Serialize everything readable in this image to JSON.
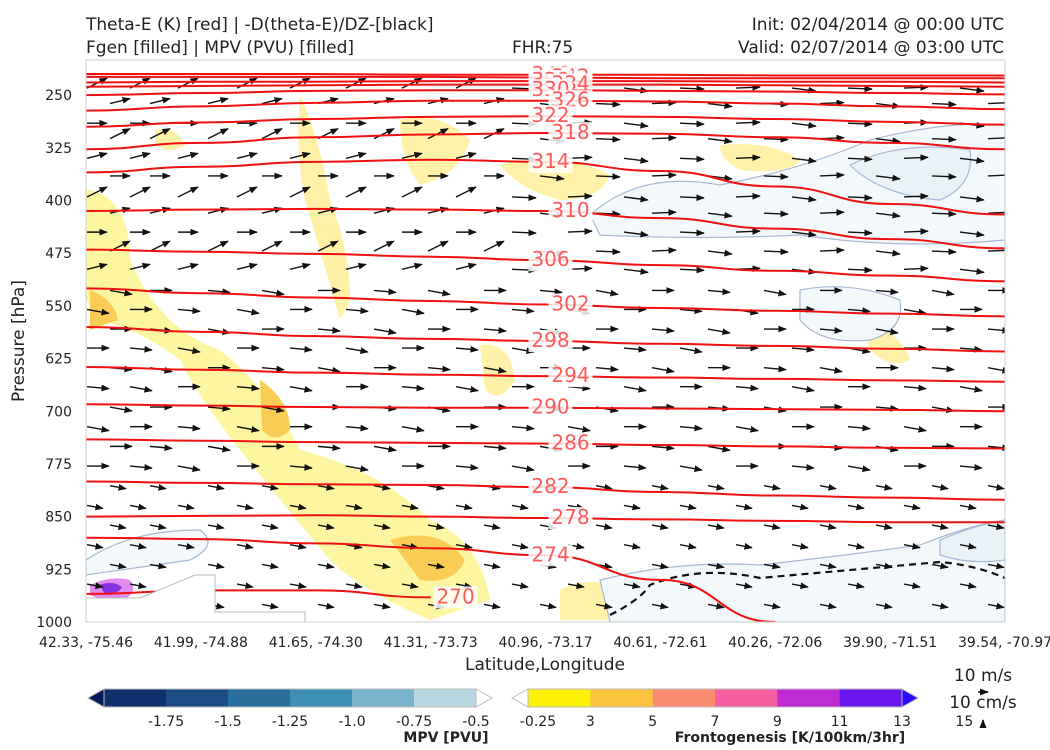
{
  "header": {
    "title_left_1": "Theta-E (K) [red] | -D(theta-E)/DZ-[black]",
    "title_left_2": "Fgen [filled] | MPV (PVU) [filled]",
    "fhr": "FHR:75",
    "init": "Init: 02/04/2014 @ 00:00 UTC",
    "valid": "Valid: 02/07/2014 @ 03:00 UTC"
  },
  "chart_data": {
    "type": "cross-section",
    "xlabel": "Latitude,Longitude",
    "ylabel": "Pressure [hPa]",
    "ylim": [
      1000,
      200
    ],
    "x_ticks": [
      "42.33, -75.46",
      "41.99, -74.88",
      "41.65, -74.30",
      "41.31, -73.73",
      "40.96, -73.17",
      "40.61, -72.61",
      "40.26, -72.06",
      "39.90, -71.51",
      "39.54, -70.97"
    ],
    "y_ticks": [
      250,
      325,
      400,
      475,
      550,
      625,
      700,
      775,
      850,
      925,
      1000
    ],
    "theta_e_contours": [
      {
        "value": 346,
        "label": "346",
        "y": [
          220,
          220,
          220,
          221,
          221,
          221,
          222,
          222,
          222
        ]
      },
      {
        "value": 342,
        "label": "342",
        "y": [
          224,
          224,
          224,
          224,
          225,
          226,
          226,
          226,
          226
        ]
      },
      {
        "value": 338,
        "label": "338",
        "y": [
          232,
          231,
          231,
          230,
          230,
          230,
          231,
          231,
          232
        ]
      },
      {
        "value": 334,
        "label": "334",
        "y": [
          238,
          237,
          236,
          235,
          235,
          235,
          236,
          237,
          238
        ]
      },
      {
        "value": 330,
        "label": "330",
        "y": [
          250,
          247,
          244,
          243,
          243,
          244,
          245,
          247,
          249
        ]
      },
      {
        "value": 326,
        "label": "326",
        "y": [
          272,
          266,
          261,
          258,
          258,
          259,
          262,
          266,
          270
        ]
      },
      {
        "value": 322,
        "label": "322",
        "y": [
          295,
          289,
          284,
          281,
          280,
          281,
          284,
          288,
          292
        ]
      },
      {
        "value": 318,
        "label": "318",
        "y": [
          327,
          318,
          310,
          306,
          304,
          305,
          310,
          318,
          327
        ]
      },
      {
        "value": 314,
        "label": "314",
        "y": [
          360,
          352,
          345,
          342,
          345,
          358,
          380,
          405,
          420
        ]
      },
      {
        "value": 310,
        "label": "310",
        "y": [
          415,
          413,
          412,
          413,
          415,
          425,
          440,
          455,
          468
        ]
      },
      {
        "value": 306,
        "label": "306",
        "y": [
          470,
          473,
          476,
          480,
          485,
          492,
          500,
          507,
          515
        ]
      },
      {
        "value": 302,
        "label": "302",
        "y": [
          525,
          532,
          538,
          543,
          548,
          553,
          557,
          561,
          565
        ]
      },
      {
        "value": 298,
        "label": "298",
        "y": [
          580,
          587,
          593,
          597,
          600,
          604,
          607,
          611,
          615
        ]
      },
      {
        "value": 294,
        "label": "294",
        "y": [
          637,
          641,
          645,
          648,
          650,
          652,
          654,
          656,
          658
        ]
      },
      {
        "value": 290,
        "label": "290",
        "y": [
          690,
          692,
          694,
          695,
          695,
          696,
          697,
          698,
          700
        ]
      },
      {
        "value": 286,
        "label": "286",
        "y": [
          740,
          742,
          744,
          745,
          746,
          748,
          750,
          752,
          753
        ]
      },
      {
        "value": 282,
        "label": "282",
        "y": [
          800,
          802,
          804,
          805,
          808,
          815,
          820,
          823,
          826
        ]
      },
      {
        "value": 278,
        "label": "278",
        "y": [
          850,
          849,
          848,
          850,
          852,
          854,
          856,
          858,
          858
        ]
      },
      {
        "value": 274,
        "label": "274",
        "y": [
          880,
          882,
          888,
          895,
          905,
          940,
          1000,
          null,
          null
        ]
      },
      {
        "value": 270,
        "label": "270",
        "y": [
          960,
          955,
          955,
          965,
          null,
          null,
          null,
          null,
          null
        ]
      }
    ],
    "colorbar_mpv": {
      "label": "MPV [PVU]",
      "ticks": [
        "-1.75",
        "-1.5",
        "-1.25",
        "-1.0",
        "-0.75",
        "-0.5",
        "-0.25"
      ],
      "colors": [
        "#08185a",
        "#12306e",
        "#1e4c86",
        "#2a6e9e",
        "#3d8fb6",
        "#78b4cc",
        "#b7d6e2",
        "#ffffff"
      ]
    },
    "colorbar_fgen": {
      "label": "Frontogenesis [K/100km/3hr]",
      "ticks": [
        "3",
        "5",
        "7",
        "9",
        "11",
        "13",
        "15"
      ],
      "colors": [
        "#ffffff",
        "#fdf10a",
        "#fbc23d",
        "#f98c6e",
        "#f55ea0",
        "#c02ad4",
        "#6a14ee",
        "#2a0cff"
      ]
    },
    "vector_key": {
      "horizontal": "10 m/s",
      "vertical": "10 cm/s"
    }
  }
}
